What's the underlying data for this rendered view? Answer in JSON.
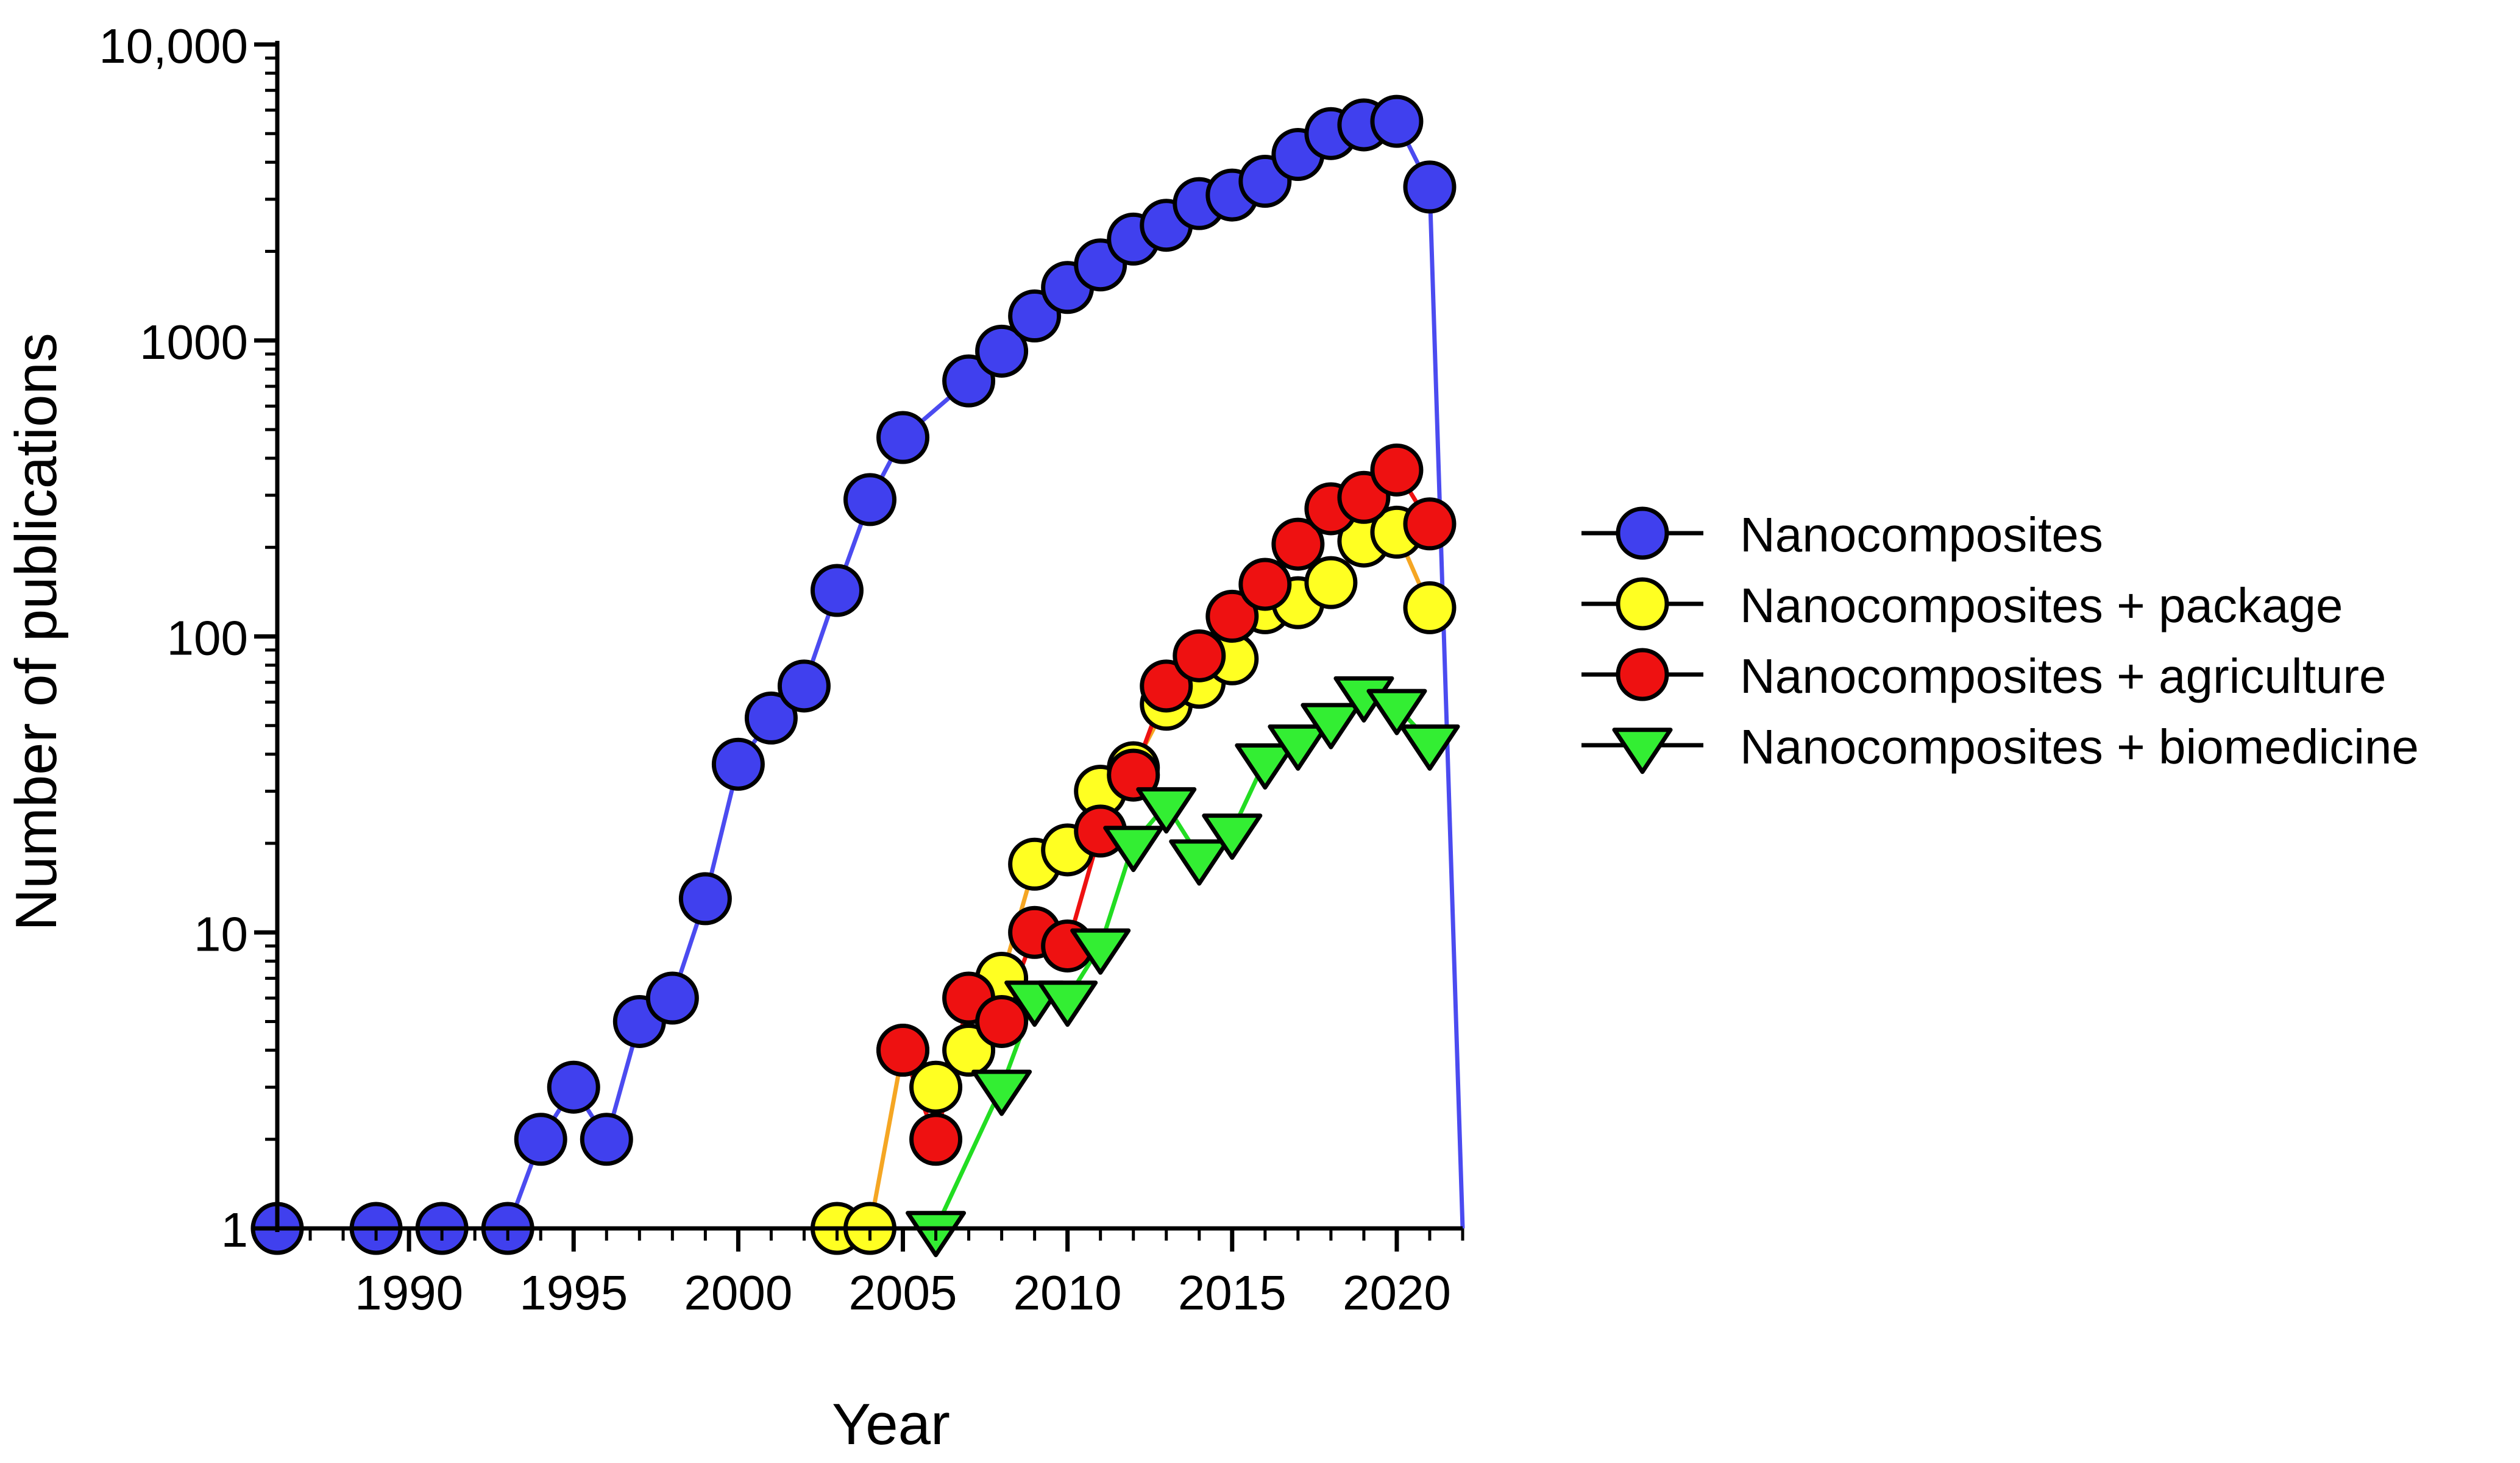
{
  "chart_data": {
    "type": "line",
    "title": "",
    "xlabel": "Year",
    "ylabel": "Number of publications",
    "yscale": "log",
    "xlim": [
      1986,
      2022
    ],
    "ylim": [
      1,
      10000
    ],
    "xticks": [
      1990,
      1995,
      2000,
      2005,
      2010,
      2015,
      2020
    ],
    "xtick_labels": [
      "1990",
      "1995",
      "2000",
      "2005",
      "2010",
      "2015",
      "2020"
    ],
    "yticks": [
      1,
      10,
      100,
      1000,
      10000
    ],
    "ytick_labels": [
      "1",
      "10",
      "100",
      "1000",
      "10,000"
    ],
    "legend_position": "right",
    "grid": false,
    "series": [
      {
        "name": "Nanocomposites",
        "color": "#4040ee",
        "line_color": "#4b4bf0",
        "marker": "circle",
        "x": [
          1986,
          1989,
          1991,
          1993,
          1994,
          1995,
          1996,
          1997,
          1998,
          1999,
          2000,
          2001,
          2002,
          2003,
          2004,
          2005,
          2007,
          2008,
          2009,
          2010,
          2011,
          2012,
          2013,
          2014,
          2015,
          2016,
          2017,
          2018,
          2019,
          2020,
          2021,
          2022
        ],
        "y": [
          1,
          1,
          1,
          1,
          2,
          3,
          2,
          5,
          6,
          13,
          37,
          53,
          68,
          143,
          290,
          470,
          730,
          920,
          1210,
          1510,
          1800,
          2200,
          2450,
          2900,
          3100,
          3450,
          4250,
          5000,
          5350,
          5500,
          3300,
          1
        ]
      },
      {
        "name": "Nanocomposites + package",
        "color": "#ffff22",
        "line_color": "#f5a623",
        "marker": "circle",
        "x": [
          2003,
          2004,
          2005,
          2006,
          2007,
          2008,
          2009,
          2010,
          2011,
          2012,
          2013,
          2014,
          2015,
          2016,
          2017,
          2018,
          2019,
          2020,
          2021,
          2022
        ],
        "y": [
          1,
          1,
          4,
          3,
          4,
          7,
          17,
          19,
          30,
          36,
          59,
          70,
          84,
          125,
          130,
          152,
          210,
          225,
          125,
          null
        ]
      },
      {
        "name": "Nanocomposites + agriculture",
        "color": "#ee1111",
        "line_color": "#ee1111",
        "marker": "circle",
        "x": [
          2005,
          2006,
          2007,
          2008,
          2009,
          2010,
          2011,
          2012,
          2013,
          2014,
          2015,
          2016,
          2017,
          2018,
          2019,
          2020,
          2021
        ],
        "y": [
          4,
          2,
          6,
          5,
          10,
          9,
          22,
          34,
          68,
          86,
          117,
          150,
          205,
          270,
          295,
          365,
          240
        ]
      },
      {
        "name": "Nanocomposites + biomedicine",
        "color": "#33ee33",
        "line_color": "#22dd22",
        "marker": "triangle-down",
        "x": [
          2006,
          2008,
          2009,
          2010,
          2011,
          2012,
          2013,
          2014,
          2015,
          2016,
          2017,
          2018,
          2019,
          2020,
          2021
        ],
        "y": [
          1,
          3,
          6,
          6,
          9,
          20,
          27,
          18,
          22,
          38,
          44,
          52,
          64,
          58,
          44
        ]
      }
    ]
  }
}
